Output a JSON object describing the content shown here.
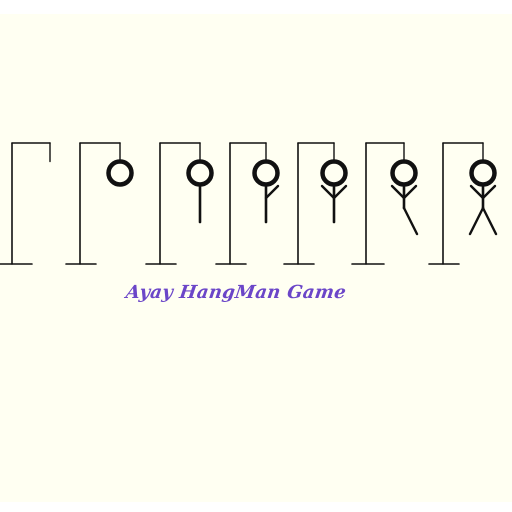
{
  "app": {
    "title": "Ayay HangMan Game"
  },
  "colors": {
    "background": "#fffff2",
    "line": "#111111",
    "title": "#6b46c8",
    "page": "#ffffff"
  },
  "stages": [
    {
      "stage": 0,
      "parts": []
    },
    {
      "stage": 1,
      "parts": [
        "head"
      ]
    },
    {
      "stage": 2,
      "parts": [
        "head",
        "body"
      ]
    },
    {
      "stage": 3,
      "parts": [
        "head",
        "body",
        "right-arm"
      ]
    },
    {
      "stage": 4,
      "parts": [
        "head",
        "body",
        "right-arm",
        "left-arm"
      ]
    },
    {
      "stage": 5,
      "parts": [
        "head",
        "body",
        "right-arm",
        "left-arm",
        "right-leg"
      ]
    },
    {
      "stage": 6,
      "parts": [
        "head",
        "body",
        "right-arm",
        "left-arm",
        "right-leg",
        "left-leg"
      ]
    }
  ]
}
